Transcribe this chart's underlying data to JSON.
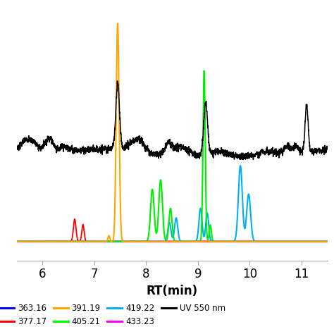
{
  "xlabel": "RT(min)",
  "xlabel_fontsize": 12,
  "xlabel_fontweight": "bold",
  "xmin": 5.5,
  "xmax": 11.5,
  "xticks": [
    6,
    7,
    8,
    9,
    10,
    11
  ],
  "background_color": "#ffffff",
  "legend_entries_row1": [
    {
      "label": "363.16",
      "color": "#0000ff"
    },
    {
      "label": "377.17",
      "color": "#ff0000"
    },
    {
      "label": "391.19",
      "color": "#ffa500"
    },
    {
      "label": "405.21",
      "color": "#00ff00"
    }
  ],
  "legend_entries_row2": [
    {
      "label": "419.22",
      "color": "#00b0f0"
    },
    {
      "label": "433.23",
      "color": "#ff00ff"
    },
    {
      "label": "UV 550 nm",
      "color": "#000000"
    }
  ],
  "series": {
    "black": {
      "color": "#000000",
      "linewidth": 1.1
    },
    "red": {
      "color": "#ff0000",
      "linewidth": 1.3
    },
    "orange": {
      "color": "#ffa500",
      "linewidth": 1.5
    },
    "green": {
      "color": "#00ee00",
      "linewidth": 1.5
    },
    "cyan": {
      "color": "#00b0f0",
      "linewidth": 1.5
    },
    "magenta": {
      "color": "#ff00ff",
      "linewidth": 2.0
    }
  }
}
